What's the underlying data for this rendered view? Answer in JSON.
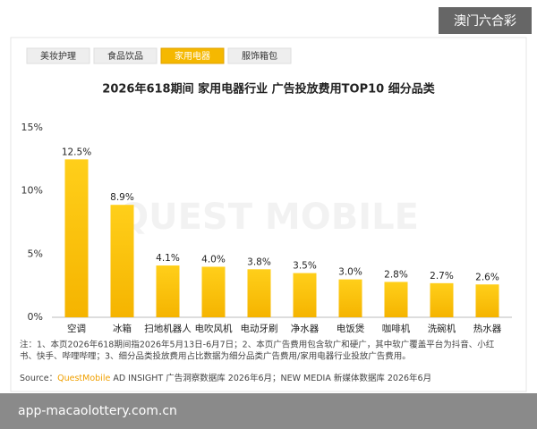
{
  "badge": "澳门六合彩",
  "tabs": [
    "美妆护理",
    "食品饮品",
    "家用电器",
    "服饰箱包"
  ],
  "active_tab": 2,
  "watermark": "QUEST MOBILE",
  "chart_data": {
    "type": "bar",
    "title": "2026年618期间 家用电器行业 广告投放费用TOP10 细分品类",
    "categories": [
      "空调",
      "冰箱",
      "扫地机器人",
      "电吹风机",
      "电动牙刷",
      "净水器",
      "电饭煲",
      "咖啡机",
      "洗碗机",
      "热水器"
    ],
    "values": [
      12.5,
      8.9,
      4.1,
      4.0,
      3.8,
      3.5,
      3.0,
      2.8,
      2.7,
      2.6
    ],
    "value_labels": [
      "12.5%",
      "8.9%",
      "4.1%",
      "4.0%",
      "3.8%",
      "3.5%",
      "3.0%",
      "2.8%",
      "2.7%",
      "2.6%"
    ],
    "color": "#f9c10a",
    "ylim": [
      0,
      15
    ],
    "yticks": [
      {
        "value": 0,
        "label": "0%"
      },
      {
        "value": 5,
        "label": "5%"
      },
      {
        "value": 10,
        "label": "10%"
      },
      {
        "value": 15,
        "label": "15%"
      }
    ],
    "grid": false
  },
  "notes": [
    "注：1、本页2026年618期间指2026年5月13日-6月7日；2、本页广告费用包含软广和硬广，其中软广覆盖平台为抖音、小红",
    "书、快手、哔哩哔哩；3、细分品类投放费用占比数据为细分品类广告费用/家用电器行业投放广告费用。"
  ],
  "source": {
    "label": "Source：",
    "brand": "QuestMobile",
    "text": " AD INSIGHT 广告洞察数据库 2026年6月；NEW MEDIA 新媒体数据库 2026年6月"
  },
  "url": "app-macaolottery.com.cn"
}
